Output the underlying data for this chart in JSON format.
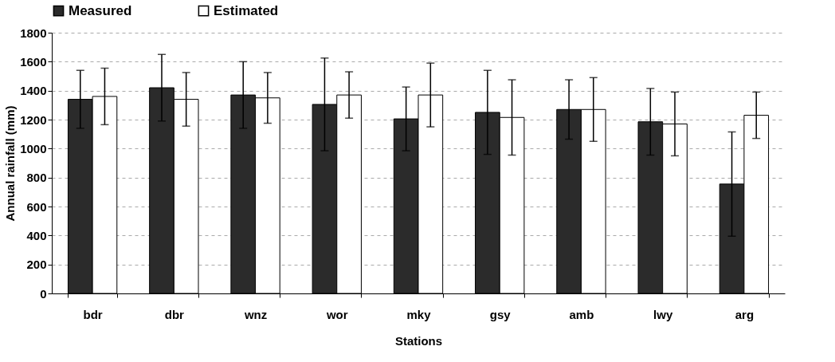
{
  "chart_data": {
    "type": "bar",
    "xlabel": "Stations",
    "ylabel": "Annual rainfall (mm)",
    "categories": [
      "bdr",
      "dbr",
      "wnz",
      "wor",
      "mky",
      "gsy",
      "amb",
      "lwy",
      "arg"
    ],
    "series": [
      {
        "name": "Measured",
        "color": "#2b2b2b",
        "values": [
          1340,
          1420,
          1370,
          1305,
          1205,
          1250,
          1270,
          1185,
          755
        ],
        "errors": [
          200,
          230,
          230,
          320,
          220,
          290,
          205,
          230,
          360
        ]
      },
      {
        "name": "Estimated",
        "color": "#ffffff",
        "values": [
          1360,
          1340,
          1350,
          1370,
          1370,
          1215,
          1270,
          1170,
          1230
        ],
        "errors": [
          195,
          185,
          175,
          160,
          220,
          260,
          220,
          220,
          160
        ]
      }
    ],
    "ylim": [
      0,
      1800
    ],
    "yticks": [
      0,
      200,
      400,
      600,
      800,
      1000,
      1200,
      1400,
      1600,
      1800
    ],
    "grid": "y",
    "legend": "top"
  }
}
